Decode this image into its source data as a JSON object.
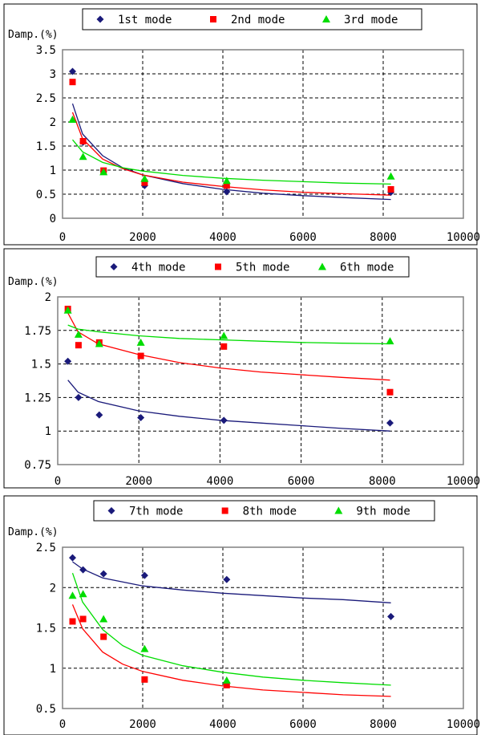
{
  "chart_data": [
    {
      "type": "scatter",
      "ylabel": "Damp.(%)",
      "xlim": [
        0,
        10000
      ],
      "ylim": [
        0,
        3.5
      ],
      "xticks": [
        0,
        2000,
        4000,
        6000,
        8000,
        10000
      ],
      "yticks": [
        0,
        0.5,
        1,
        1.5,
        2,
        2.5,
        3,
        3.5
      ],
      "ytick_labels": [
        "0",
        "0.5",
        "1",
        "1.5",
        "2",
        "2.5",
        "3",
        "3.5"
      ],
      "grid": true,
      "legend_position": "top",
      "series": [
        {
          "name": "1st mode",
          "marker": "diamond",
          "color": "#1a1a7a",
          "points": [
            [
              250,
              3.05
            ],
            [
              512,
              1.58
            ],
            [
              1024,
              0.98
            ],
            [
              2048,
              0.68
            ],
            [
              4096,
              0.55
            ],
            [
              8192,
              0.54
            ]
          ],
          "trend": [
            [
              250,
              2.38
            ],
            [
              500,
              1.75
            ],
            [
              1000,
              1.3
            ],
            [
              1500,
              1.05
            ],
            [
              2000,
              0.9
            ],
            [
              3000,
              0.72
            ],
            [
              4000,
              0.6
            ],
            [
              5000,
              0.52
            ],
            [
              6000,
              0.47
            ],
            [
              7000,
              0.43
            ],
            [
              8192,
              0.39
            ]
          ]
        },
        {
          "name": "2nd mode",
          "marker": "square",
          "color": "#ff0000",
          "points": [
            [
              250,
              2.83
            ],
            [
              512,
              1.6
            ],
            [
              1024,
              0.99
            ],
            [
              2048,
              0.74
            ],
            [
              4096,
              0.68
            ],
            [
              8192,
              0.6
            ]
          ],
          "trend": [
            [
              250,
              2.2
            ],
            [
              500,
              1.65
            ],
            [
              1000,
              1.23
            ],
            [
              1500,
              1.03
            ],
            [
              2000,
              0.9
            ],
            [
              3000,
              0.75
            ],
            [
              4000,
              0.66
            ],
            [
              5000,
              0.59
            ],
            [
              6000,
              0.54
            ],
            [
              7000,
              0.51
            ],
            [
              8192,
              0.48
            ]
          ]
        },
        {
          "name": "3rd mode",
          "marker": "triangle",
          "color": "#00dd00",
          "points": [
            [
              250,
              2.05
            ],
            [
              512,
              1.28
            ],
            [
              1024,
              0.96
            ],
            [
              2048,
              0.82
            ],
            [
              4096,
              0.78
            ],
            [
              8192,
              0.87
            ]
          ],
          "trend": [
            [
              250,
              1.63
            ],
            [
              500,
              1.38
            ],
            [
              1000,
              1.16
            ],
            [
              1500,
              1.05
            ],
            [
              2000,
              0.98
            ],
            [
              3000,
              0.89
            ],
            [
              4000,
              0.83
            ],
            [
              5000,
              0.79
            ],
            [
              6000,
              0.76
            ],
            [
              7000,
              0.73
            ],
            [
              8192,
              0.71
            ]
          ]
        }
      ]
    },
    {
      "type": "scatter",
      "ylabel": "Damp.(%)",
      "xlim": [
        0,
        10000
      ],
      "ylim": [
        0.75,
        2
      ],
      "xticks": [
        0,
        2000,
        4000,
        6000,
        8000,
        10000
      ],
      "yticks": [
        0.75,
        1,
        1.25,
        1.5,
        1.75,
        2
      ],
      "ytick_labels": [
        "0.75",
        "1",
        "1.25",
        "1.5",
        "1.75",
        "2"
      ],
      "grid": true,
      "legend_position": "top",
      "series": [
        {
          "name": "4th mode",
          "marker": "diamond",
          "color": "#1a1a7a",
          "points": [
            [
              250,
              1.52
            ],
            [
              512,
              1.25
            ],
            [
              1024,
              1.12
            ],
            [
              2048,
              1.1
            ],
            [
              4096,
              1.08
            ],
            [
              8192,
              1.06
            ]
          ],
          "trend": [
            [
              250,
              1.38
            ],
            [
              500,
              1.29
            ],
            [
              1000,
              1.22
            ],
            [
              2000,
              1.15
            ],
            [
              3000,
              1.11
            ],
            [
              4000,
              1.08
            ],
            [
              5000,
              1.06
            ],
            [
              6000,
              1.04
            ],
            [
              7000,
              1.02
            ],
            [
              8192,
              1.0
            ]
          ]
        },
        {
          "name": "5th mode",
          "marker": "square",
          "color": "#ff0000",
          "points": [
            [
              250,
              1.91
            ],
            [
              512,
              1.64
            ],
            [
              1024,
              1.66
            ],
            [
              2048,
              1.56
            ],
            [
              4096,
              1.63
            ],
            [
              8192,
              1.29
            ]
          ],
          "trend": [
            [
              250,
              1.88
            ],
            [
              500,
              1.74
            ],
            [
              1000,
              1.65
            ],
            [
              2000,
              1.57
            ],
            [
              3000,
              1.51
            ],
            [
              4000,
              1.47
            ],
            [
              5000,
              1.44
            ],
            [
              6000,
              1.42
            ],
            [
              7000,
              1.4
            ],
            [
              8192,
              1.38
            ]
          ]
        },
        {
          "name": "6th mode",
          "marker": "triangle",
          "color": "#00dd00",
          "points": [
            [
              250,
              1.9
            ],
            [
              512,
              1.72
            ],
            [
              1024,
              1.65
            ],
            [
              2048,
              1.66
            ],
            [
              4096,
              1.71
            ],
            [
              8192,
              1.67
            ]
          ],
          "trend": [
            [
              250,
              1.79
            ],
            [
              500,
              1.76
            ],
            [
              1000,
              1.74
            ],
            [
              2000,
              1.71
            ],
            [
              3000,
              1.69
            ],
            [
              4000,
              1.68
            ],
            [
              5000,
              1.67
            ],
            [
              6000,
              1.66
            ],
            [
              7000,
              1.655
            ],
            [
              8192,
              1.65
            ]
          ]
        }
      ]
    },
    {
      "type": "scatter",
      "ylabel": "Damp.(%)",
      "xlim": [
        0,
        10000
      ],
      "ylim": [
        0.5,
        2.5
      ],
      "xticks": [
        0,
        2000,
        4000,
        6000,
        8000,
        10000
      ],
      "yticks": [
        0.5,
        1,
        1.5,
        2,
        2.5
      ],
      "ytick_labels": [
        "0.5",
        "1",
        "1.5",
        "2",
        "2.5"
      ],
      "grid": true,
      "legend_position": "top",
      "series": [
        {
          "name": "7th mode",
          "marker": "diamond",
          "color": "#1a1a7a",
          "points": [
            [
              250,
              2.37
            ],
            [
              512,
              2.22
            ],
            [
              1024,
              2.17
            ],
            [
              2048,
              2.15
            ],
            [
              4096,
              2.1
            ],
            [
              8192,
              1.64
            ]
          ],
          "trend": [
            [
              250,
              2.32
            ],
            [
              500,
              2.23
            ],
            [
              1000,
              2.12
            ],
            [
              2000,
              2.02
            ],
            [
              3000,
              1.97
            ],
            [
              4000,
              1.93
            ],
            [
              5000,
              1.9
            ],
            [
              6000,
              1.87
            ],
            [
              7000,
              1.85
            ],
            [
              8192,
              1.81
            ]
          ]
        },
        {
          "name": "8th mode",
          "marker": "square",
          "color": "#ff0000",
          "points": [
            [
              250,
              1.58
            ],
            [
              512,
              1.61
            ],
            [
              1024,
              1.39
            ],
            [
              2048,
              0.86
            ],
            [
              4096,
              0.79
            ],
            [
              8192,
              null
            ]
          ],
          "trend": [
            [
              250,
              1.79
            ],
            [
              500,
              1.49
            ],
            [
              1000,
              1.2
            ],
            [
              1500,
              1.05
            ],
            [
              2000,
              0.96
            ],
            [
              3000,
              0.85
            ],
            [
              4000,
              0.78
            ],
            [
              5000,
              0.73
            ],
            [
              6000,
              0.7
            ],
            [
              7000,
              0.67
            ],
            [
              8192,
              0.65
            ]
          ]
        },
        {
          "name": "9th mode",
          "marker": "triangle",
          "color": "#00dd00",
          "points": [
            [
              250,
              1.9
            ],
            [
              512,
              1.92
            ],
            [
              1024,
              1.61
            ],
            [
              2048,
              1.24
            ],
            [
              4096,
              0.85
            ],
            [
              8192,
              null
            ]
          ],
          "trend": [
            [
              250,
              2.18
            ],
            [
              500,
              1.82
            ],
            [
              1000,
              1.48
            ],
            [
              1500,
              1.28
            ],
            [
              2000,
              1.16
            ],
            [
              3000,
              1.03
            ],
            [
              4000,
              0.95
            ],
            [
              5000,
              0.89
            ],
            [
              6000,
              0.85
            ],
            [
              7000,
              0.82
            ],
            [
              8192,
              0.79
            ]
          ]
        }
      ]
    }
  ]
}
